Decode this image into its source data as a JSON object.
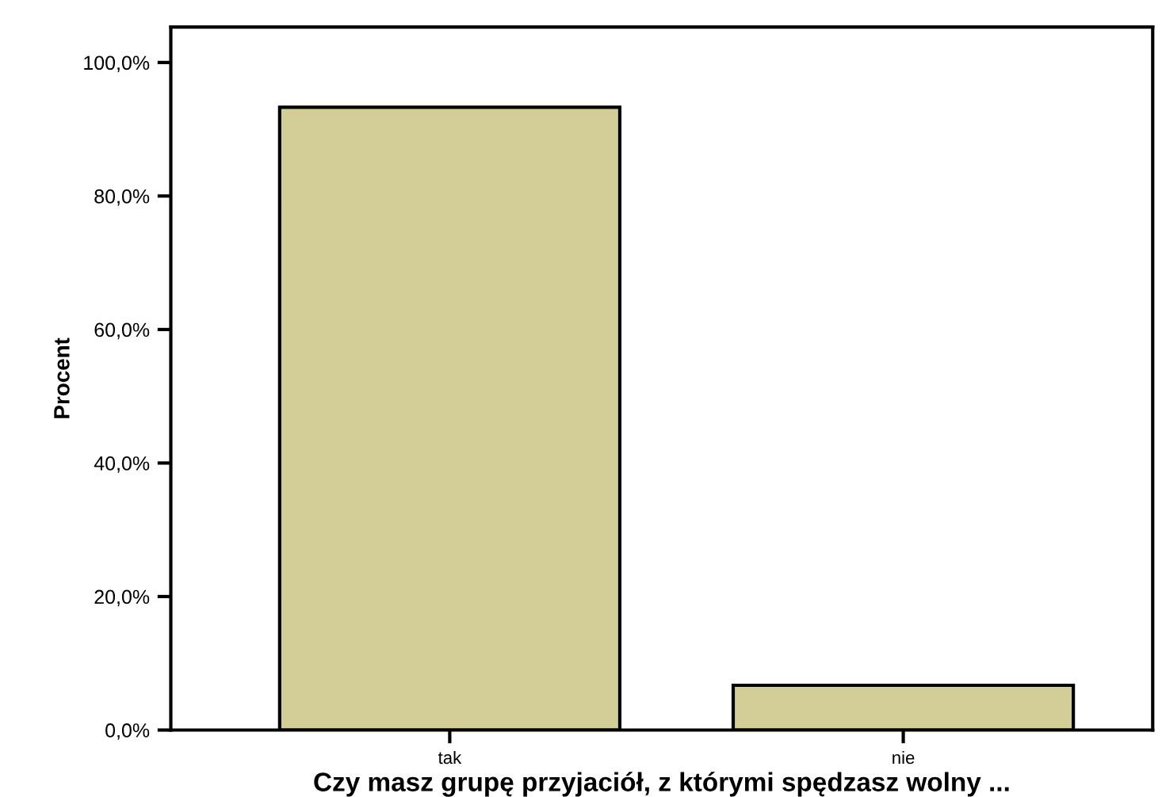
{
  "chart_data": {
    "type": "bar",
    "xlabel": "Czy masz grupę przyjaciół, z którymi spędzasz wolny ...",
    "ylabel": "Procent",
    "categories": [
      "tak",
      "nie"
    ],
    "values": [
      93.3,
      6.7
    ],
    "color": "#d3cd97",
    "ylim": [
      0,
      105.3
    ],
    "yticks": [
      {
        "value": 0,
        "label": "0,0%"
      },
      {
        "value": 20,
        "label": "20,0%"
      },
      {
        "value": 40,
        "label": "40,0%"
      },
      {
        "value": 60,
        "label": "60,0%"
      },
      {
        "value": 80,
        "label": "80,0%"
      },
      {
        "value": 100,
        "label": "100,0%"
      }
    ],
    "grid": false
  }
}
